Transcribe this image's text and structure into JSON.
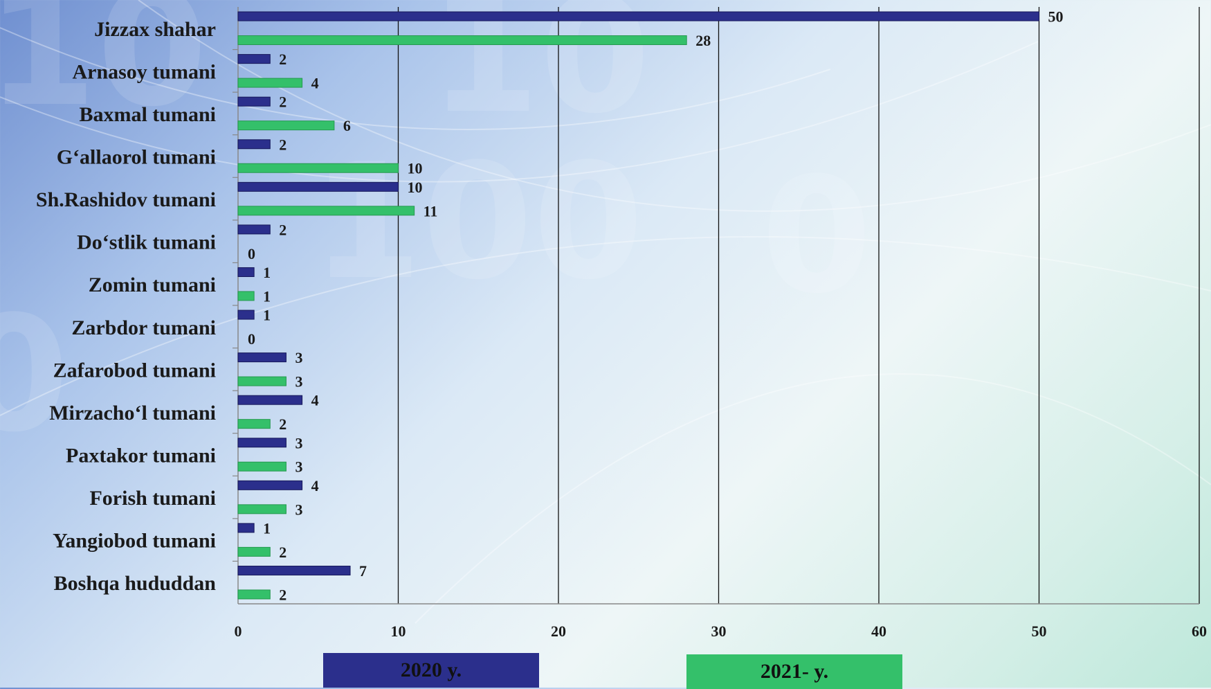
{
  "chart_data": {
    "type": "bar",
    "orientation": "horizontal",
    "categories": [
      "Jizzax shahar",
      "Arnasoy tumani",
      "Baxmal tumani",
      "G‘allaorol tumani",
      "Sh.Rashidov tumani",
      "Do‘stlik tumani",
      "Zomin tumani",
      "Zarbdor tumani",
      "Zafarobod tumani",
      "Mirzacho‘l tumani",
      "Paxtakor tumani",
      "Forish tumani",
      "Yangiobod tumani",
      "Boshqa hududdan"
    ],
    "series": [
      {
        "name": "2020 y.",
        "color": "#2b2f8c",
        "values": [
          50,
          2,
          2,
          2,
          10,
          2,
          1,
          1,
          3,
          4,
          3,
          4,
          1,
          7
        ]
      },
      {
        "name": "2021- y.",
        "color": "#34c06a",
        "values": [
          28,
          4,
          6,
          10,
          11,
          0,
          1,
          0,
          3,
          2,
          3,
          3,
          2,
          2
        ]
      }
    ],
    "xlim": [
      0,
      60
    ],
    "xticks": [
      "0",
      "10",
      "20",
      "30",
      "40",
      "50",
      "60"
    ],
    "grid": true,
    "legend_position": "bottom"
  }
}
